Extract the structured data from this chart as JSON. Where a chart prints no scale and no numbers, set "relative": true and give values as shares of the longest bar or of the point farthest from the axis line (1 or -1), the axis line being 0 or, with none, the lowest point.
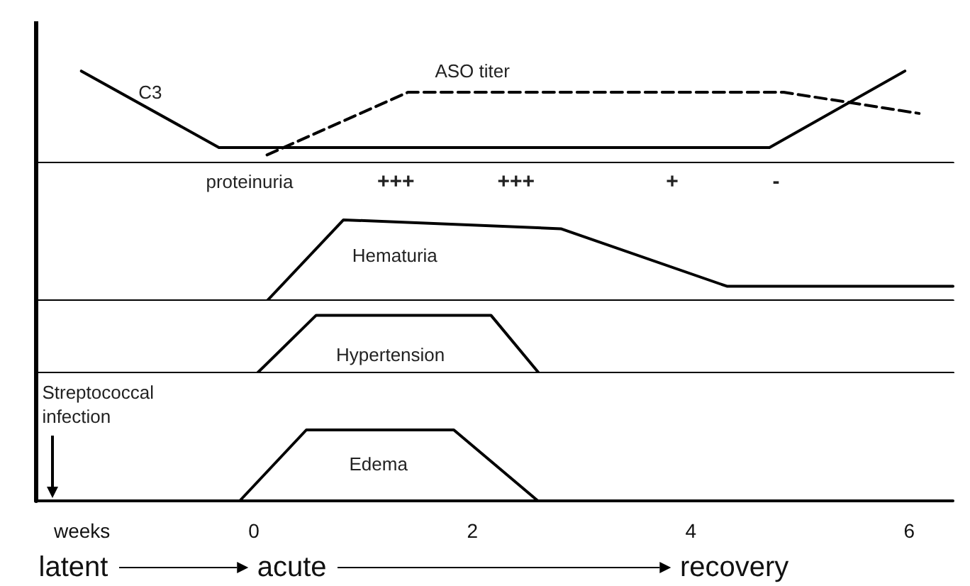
{
  "chart_data": [
    {
      "type": "line",
      "relative": true,
      "xlim": [
        -2,
        6.4
      ],
      "tick_labels": false,
      "marker": "none",
      "line_style": "solid",
      "series": [
        {
          "name": "C3",
          "color": "#000000",
          "x": [
            -1.58,
            -0.32,
            4.72,
            5.96
          ],
          "values": [
            1,
            0.17,
            0.17,
            1
          ]
        },
        {
          "name": "ASO titer",
          "color": "#000000",
          "line_style": "dashed",
          "x": [
            0.12,
            1.41,
            4.85,
            6.09
          ],
          "values": [
            0.09,
            0.77,
            0.77,
            0.54
          ]
        }
      ]
    },
    {
      "type": "line",
      "relative": true,
      "xlim": [
        -2,
        6.4
      ],
      "tick_labels": false,
      "marker": "none",
      "line_style": "solid",
      "annotations": [
        "proteinuria",
        "+++",
        "+++",
        "+",
        "-"
      ],
      "series": [
        {
          "name": "Hematuria",
          "color": "#000000",
          "x": [
            0.12,
            0.82,
            2.81,
            4.33,
            6.4
          ],
          "values": [
            0,
            1,
            0.89,
            0.18,
            0.18
          ]
        }
      ]
    },
    {
      "type": "line",
      "relative": true,
      "xlim": [
        -2,
        6.4
      ],
      "tick_labels": false,
      "marker": "none",
      "line_style": "solid",
      "series": [
        {
          "name": "Hypertension",
          "color": "#000000",
          "x": [
            -2,
            0.03,
            0.57,
            2.17,
            2.61,
            6.4
          ],
          "values": [
            0,
            0,
            1,
            1,
            0,
            0
          ]
        }
      ]
    },
    {
      "type": "line",
      "relative": true,
      "xlim": [
        -2,
        6.4
      ],
      "xticks": [
        0,
        2,
        4,
        6
      ],
      "xlabel": "weeks",
      "tick_labels": "x",
      "marker": "none",
      "line_style": "solid",
      "annotations": [
        "Streptococcal infection",
        "latent",
        "acute",
        "recovery"
      ],
      "series": [
        {
          "name": "Edema",
          "color": "#000000",
          "x": [
            -0.13,
            0.48,
            1.83,
            2.6
          ],
          "values": [
            0,
            1,
            1,
            0
          ]
        }
      ]
    }
  ]
}
